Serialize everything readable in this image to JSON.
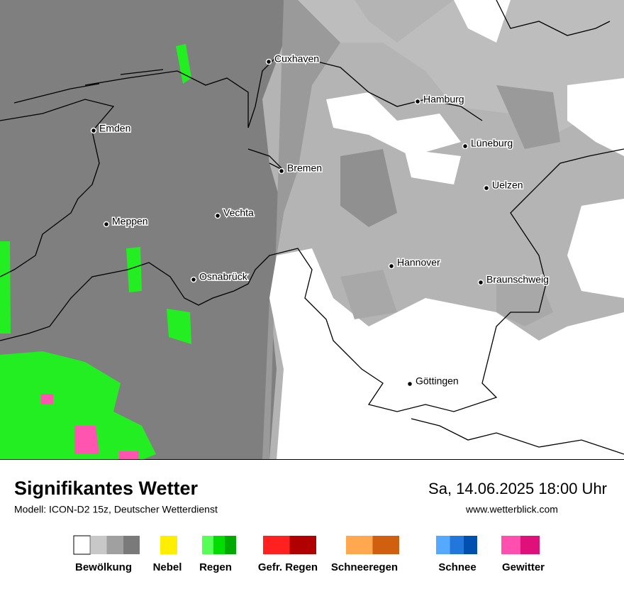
{
  "header": {
    "title": "Signifikantes Wetter",
    "model": "Modell: ICON-D2 15z, Deutscher Wetterdienst",
    "datetime": "Sa, 14.06.2025 18:00 Uhr",
    "website": "www.wetterblick.com"
  },
  "cities": [
    "Cuxhaven",
    "Hamburg",
    "Emden",
    "Lüneburg",
    "Bremen",
    "Uelzen",
    "Vechta",
    "Meppen",
    "Hannover",
    "Osnabrück",
    "Braunschweig",
    "Göttingen"
  ],
  "legend": [
    {
      "label": "Bewölkung",
      "colors": [
        "#ffffff",
        "#c8c8c8",
        "#a0a0a0",
        "#7a7a7a"
      ]
    },
    {
      "label": "Nebel",
      "colors": [
        "#ffee00"
      ]
    },
    {
      "label": "Regen",
      "colors": [
        "#55ff55",
        "#00dd00",
        "#00aa00"
      ]
    },
    {
      "label": "Gefr. Regen",
      "colors": [
        "#ff2020",
        "#b00000"
      ]
    },
    {
      "label": "Schneeregen",
      "colors": [
        "#ffa850",
        "#d06010"
      ]
    },
    {
      "label": "Schnee",
      "colors": [
        "#55aaff",
        "#2277dd",
        "#0050b0"
      ]
    },
    {
      "label": "Gewitter",
      "colors": [
        "#ff50b0",
        "#e0107a"
      ]
    }
  ]
}
